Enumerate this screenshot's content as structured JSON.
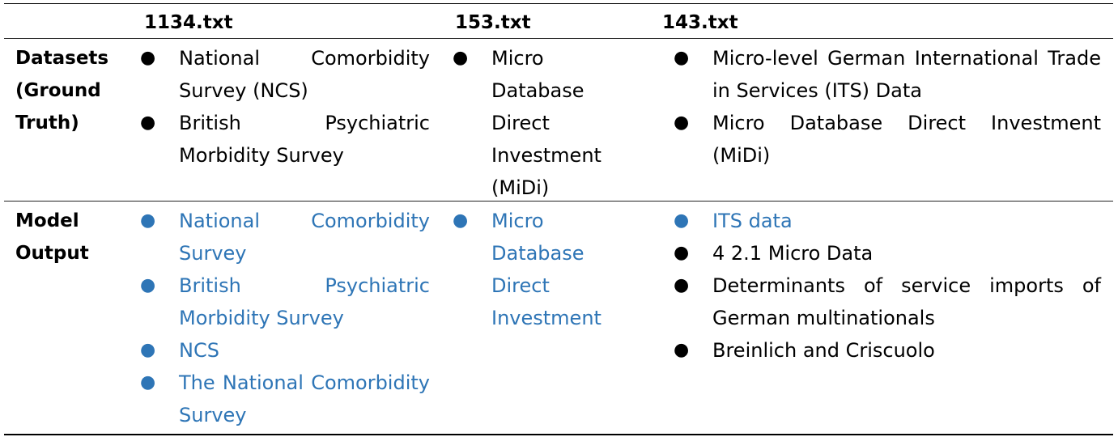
{
  "headers": [
    "1134.txt",
    "153.txt",
    "143.txt"
  ],
  "rows": [
    {
      "label_lines": [
        "Datasets",
        "(Ground",
        "Truth)"
      ],
      "cells": [
        [
          {
            "text": "National Comorbidity Survey (NCS)",
            "color": "black"
          },
          {
            "text": "British Psychiatric Morbidity Survey",
            "color": "black"
          }
        ],
        [
          {
            "text": "Micro Database Direct Investment (MiDi)",
            "color": "black"
          }
        ],
        [
          {
            "text": "Micro-level German International Trade in Services (ITS) Data",
            "color": "black"
          },
          {
            "text": "Micro Database Direct Investment (MiDi)",
            "color": "black"
          }
        ]
      ]
    },
    {
      "label_lines": [
        "Model",
        "Output"
      ],
      "cells": [
        [
          {
            "text": "National Comorbidity Survey",
            "color": "blue"
          },
          {
            "text": "British Psychiatric Morbidity Survey",
            "color": "blue"
          },
          {
            "text": "NCS",
            "color": "blue"
          },
          {
            "text": "The National Comorbidity Survey",
            "color": "blue"
          }
        ],
        [
          {
            "text": "Micro Database Direct Investment",
            "color": "blue"
          }
        ],
        [
          {
            "text": "ITS data",
            "color": "blue"
          },
          {
            "text": "4 2.1 Micro Data",
            "color": "black"
          },
          {
            "text": "Determinants of service imports of German multinationals",
            "color": "black"
          },
          {
            "text": "Breinlich and Criscuolo",
            "color": "black"
          }
        ]
      ]
    }
  ],
  "bullet_glyph": "●",
  "colors": {
    "blue": "#2e75b6",
    "black": "#000000"
  }
}
